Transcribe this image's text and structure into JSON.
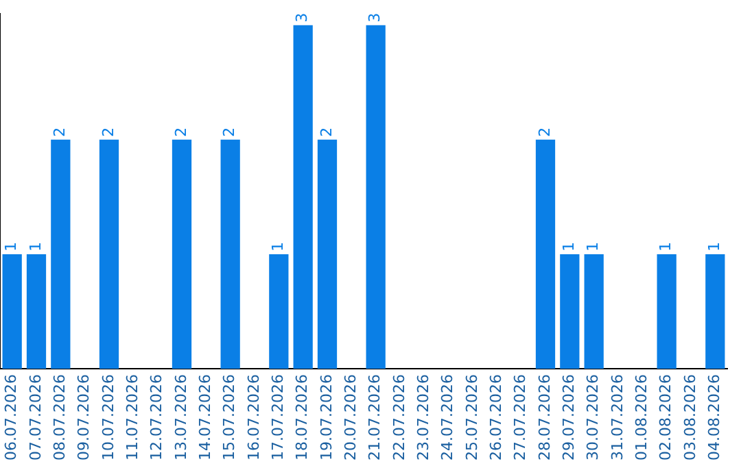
{
  "chart_data": {
    "type": "bar",
    "categories": [
      "06.07.2026",
      "07.07.2026",
      "08.07.2026",
      "09.07.2026",
      "10.07.2026",
      "11.07.2026",
      "12.07.2026",
      "13.07.2026",
      "14.07.2026",
      "15.07.2026",
      "16.07.2026",
      "17.07.2026",
      "18.07.2026",
      "19.07.2026",
      "20.07.2026",
      "21.07.2026",
      "22.07.2026",
      "23.07.2026",
      "24.07.2026",
      "25.07.2026",
      "26.07.2026",
      "27.07.2026",
      "28.07.2026",
      "29.07.2026",
      "30.07.2026",
      "31.07.2026",
      "01.08.2026",
      "02.08.2026",
      "03.08.2026",
      "04.08.2026"
    ],
    "values": [
      1,
      1,
      2,
      0,
      2,
      0,
      0,
      2,
      0,
      2,
      0,
      1,
      3,
      2,
      0,
      3,
      0,
      0,
      0,
      0,
      0,
      0,
      2,
      1,
      1,
      0,
      0,
      1,
      0,
      1
    ],
    "value_labels": [
      "1",
      "1",
      "2",
      null,
      "2",
      null,
      null,
      "2",
      null,
      "2",
      null,
      "1",
      "3",
      "2",
      null,
      "3",
      null,
      null,
      null,
      null,
      null,
      null,
      "2",
      "1",
      "1",
      null,
      null,
      "1",
      null,
      "1"
    ],
    "color": "#0a7fe6",
    "ylim": [
      0,
      3.1
    ],
    "tick_labels": "x",
    "grid": false,
    "legend": false
  }
}
